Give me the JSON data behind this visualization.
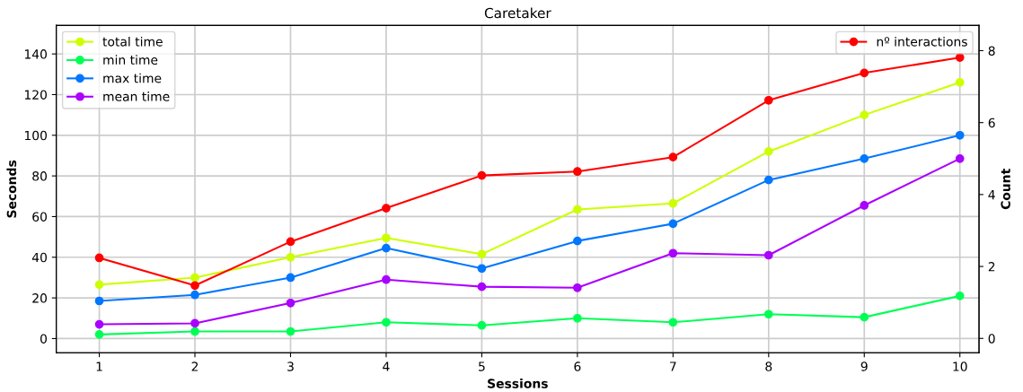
{
  "chart_data": {
    "type": "line",
    "title": "Caretaker",
    "xlabel": "Sessions",
    "ylabel": "Seconds",
    "y2label": "Count",
    "x": [
      1,
      2,
      3,
      4,
      5,
      6,
      7,
      8,
      9,
      10
    ],
    "xlim": [
      0.55,
      10.2
    ],
    "xticks": [
      1,
      2,
      3,
      4,
      5,
      6,
      7,
      8,
      9,
      10
    ],
    "ylim": [
      -7,
      154
    ],
    "yticks": [
      0,
      20,
      40,
      60,
      80,
      100,
      120,
      140
    ],
    "y2lim": [
      -0.4,
      8.7
    ],
    "y2ticks": [
      0,
      2,
      4,
      6,
      8
    ],
    "grid": true,
    "legend": "top left",
    "marker": "circle",
    "line_style": "solid",
    "series": [
      {
        "name": "total time",
        "color": "#ccff00",
        "values": [
          26.5,
          30,
          40,
          49.5,
          41.5,
          63.5,
          66.5,
          92,
          110,
          126
        ]
      },
      {
        "name": "min time",
        "color": "#00ff55",
        "values": [
          2,
          3.5,
          3.5,
          8,
          6.5,
          10,
          8,
          12,
          10.5,
          21
        ]
      },
      {
        "name": "max time",
        "color": "#0077ff",
        "values": [
          18.5,
          21.5,
          30,
          44.5,
          34.5,
          48,
          56.5,
          78,
          88.5,
          100
        ]
      },
      {
        "name": "mean time",
        "color": "#aa00ff",
        "values": [
          7,
          7.5,
          17.5,
          29,
          25.5,
          25,
          42,
          41,
          65.5,
          88.5
        ]
      },
      {
        "name": "nº interactions",
        "color": "#ff0000",
        "axis": "y2",
        "values": [
          2.24,
          1.47,
          2.69,
          3.62,
          4.53,
          4.64,
          5.04,
          6.62,
          7.38,
          7.81
        ]
      }
    ]
  }
}
